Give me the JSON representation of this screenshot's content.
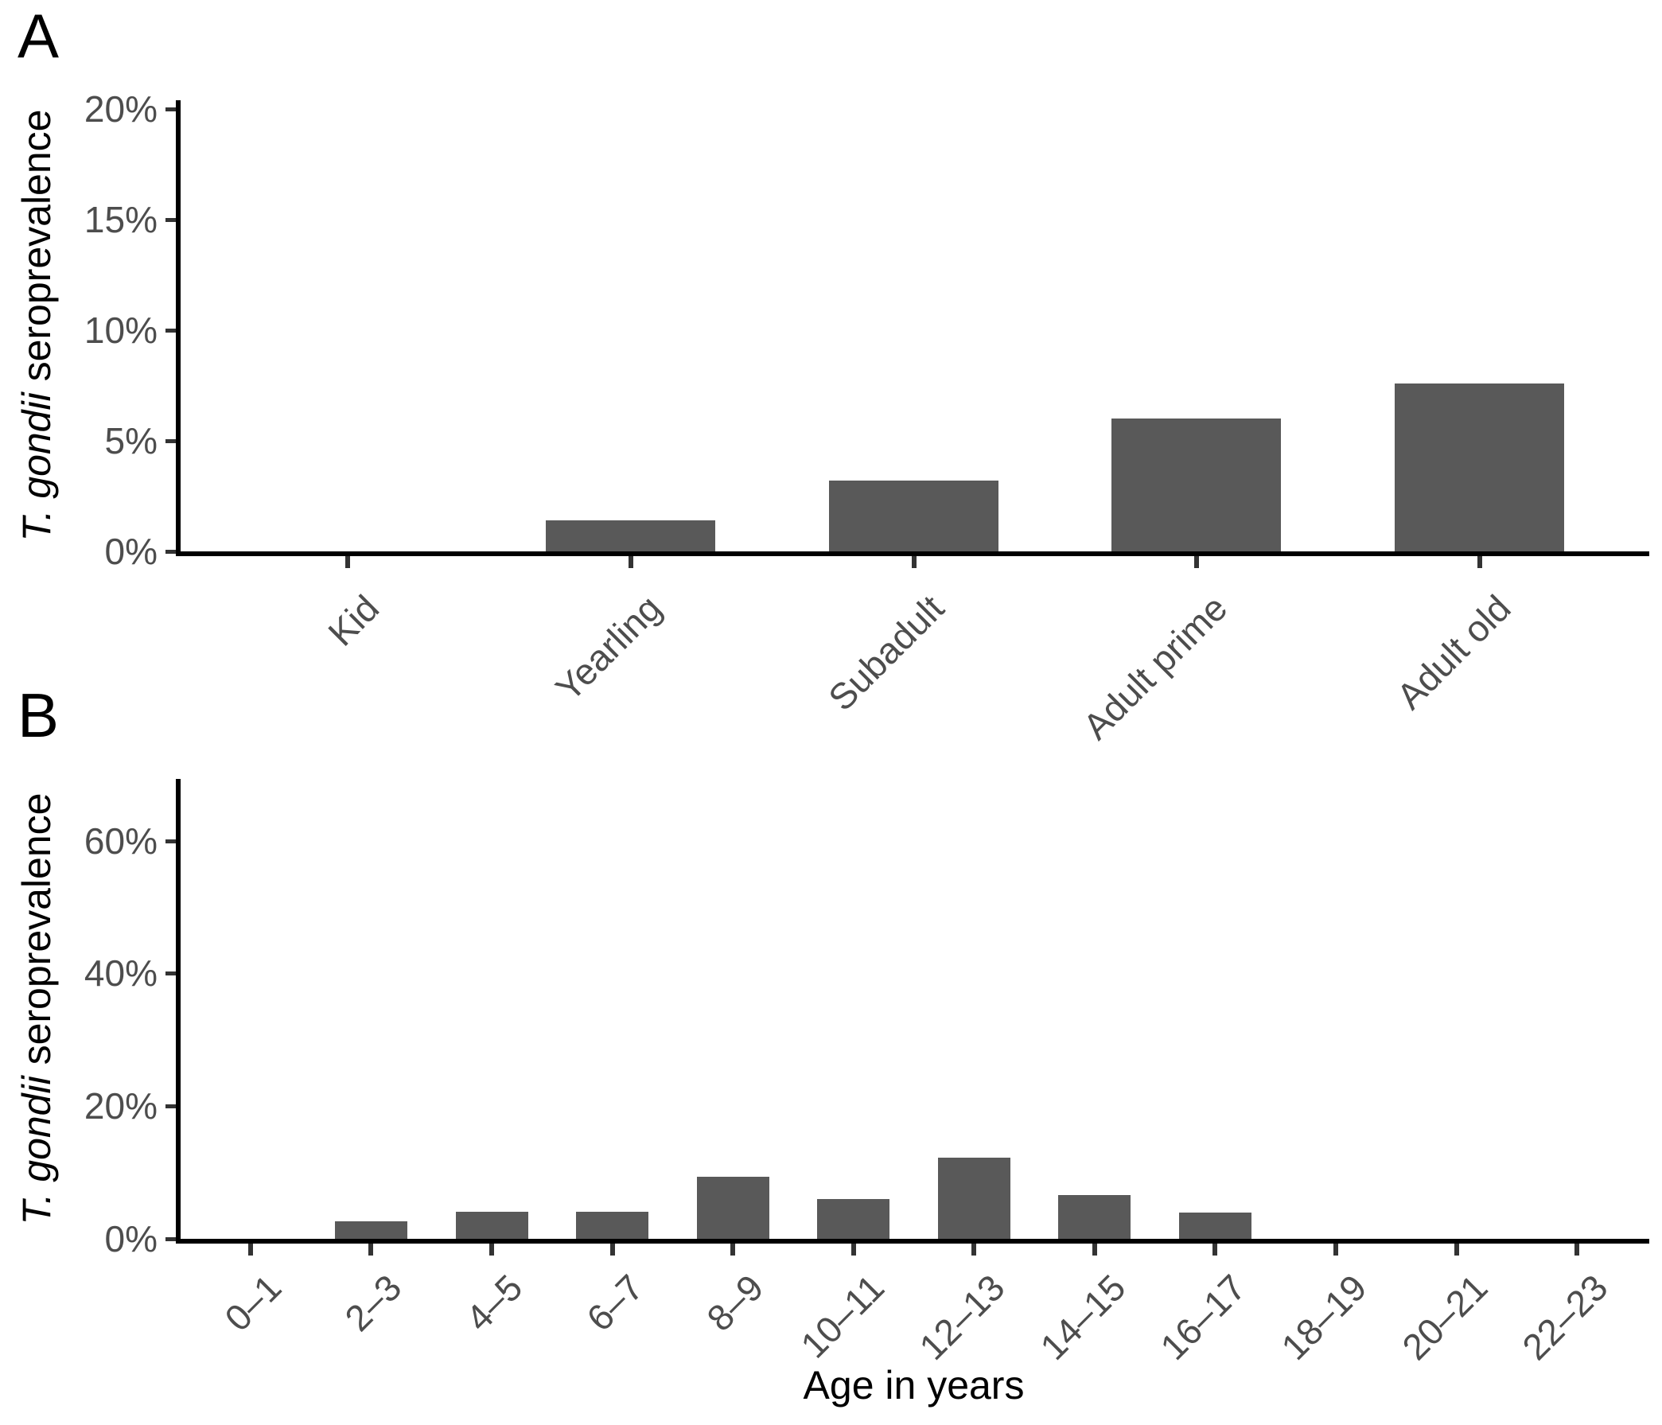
{
  "figure": {
    "background": "#ffffff",
    "panel_letters": [
      "A",
      "B"
    ]
  },
  "colors": {
    "bar": "#595959",
    "axis_line": "#000000",
    "tick_mark": "#333333",
    "tick_label": "#4d4d4d",
    "title_text": "#000000"
  },
  "chart_data": [
    {
      "type": "bar",
      "panel_label": "A",
      "categories": [
        "Kid",
        "Yearling",
        "Subadult",
        "Adult prime",
        "Adult old"
      ],
      "values": [
        0,
        1.4,
        3.2,
        6.0,
        7.6
      ],
      "values_unit": "%",
      "xlabel": "",
      "ylabel_italic": "T. gondii",
      "ylabel_rest": " seroprevalence",
      "yticks": [
        {
          "value": 0,
          "label": "0%"
        },
        {
          "value": 5,
          "label": "5%"
        },
        {
          "value": 10,
          "label": "10%"
        },
        {
          "value": 15,
          "label": "15%"
        },
        {
          "value": 20,
          "label": "20%"
        }
      ],
      "ylim": [
        0,
        20.4
      ],
      "grid": false,
      "legend": false,
      "bar_color": "#595959"
    },
    {
      "type": "bar",
      "panel_label": "B",
      "categories": [
        "0–1",
        "2–3",
        "4–5",
        "6–7",
        "8–9",
        "10–11",
        "12–13",
        "14–15",
        "16–17",
        "18–19",
        "20–21",
        "22–23"
      ],
      "values": [
        0,
        2.6,
        4.1,
        4.1,
        9.4,
        6.0,
        12.2,
        6.6,
        4.0,
        0,
        0,
        0
      ],
      "values_unit": "%",
      "xlabel": "Age in years",
      "ylabel_italic": "T. gondii",
      "ylabel_rest": " seroprevalence",
      "yticks": [
        {
          "value": 0,
          "label": "0%"
        },
        {
          "value": 20,
          "label": "20%"
        },
        {
          "value": 40,
          "label": "40%"
        },
        {
          "value": 60,
          "label": "60%"
        }
      ],
      "ylim": [
        0,
        69.3
      ],
      "grid": false,
      "legend": false,
      "bar_color": "#595959"
    }
  ]
}
